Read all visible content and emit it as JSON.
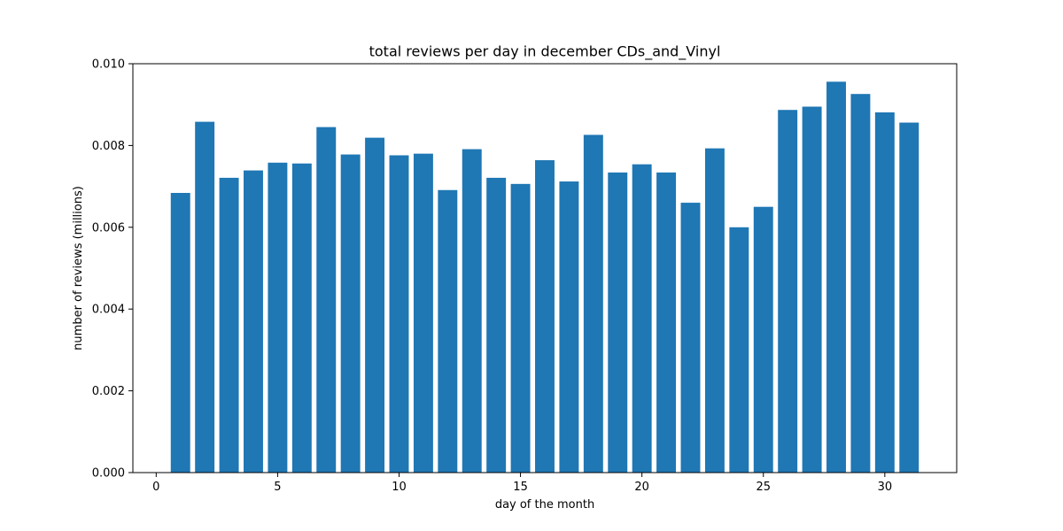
{
  "chart_data": {
    "type": "bar",
    "title": "total reviews per day in december CDs_and_Vinyl",
    "xlabel": "day of the month",
    "ylabel": "number of reviews (millions)",
    "x": [
      1,
      2,
      3,
      4,
      5,
      6,
      7,
      8,
      9,
      10,
      11,
      12,
      13,
      14,
      15,
      16,
      17,
      18,
      19,
      20,
      21,
      22,
      23,
      24,
      25,
      26,
      27,
      28,
      29,
      30,
      31
    ],
    "values": [
      0.00684,
      0.00858,
      0.00721,
      0.00739,
      0.00758,
      0.00756,
      0.00845,
      0.00778,
      0.00819,
      0.00776,
      0.0078,
      0.00691,
      0.00791,
      0.00721,
      0.00706,
      0.00764,
      0.00712,
      0.00826,
      0.00734,
      0.00754,
      0.00734,
      0.0066,
      0.00793,
      0.006,
      0.0065,
      0.00887,
      0.00895,
      0.00956,
      0.00926,
      0.00881,
      0.00856
    ],
    "xlim": [
      -0.96,
      32.96
    ],
    "ylim": [
      0,
      0.01
    ],
    "xticks": [
      0,
      5,
      10,
      15,
      20,
      25,
      30
    ],
    "xtick_labels": [
      "0",
      "5",
      "10",
      "15",
      "20",
      "25",
      "30"
    ],
    "yticks": [
      0,
      0.002,
      0.004,
      0.006,
      0.008,
      0.01
    ],
    "ytick_labels": [
      "0.000",
      "0.002",
      "0.004",
      "0.006",
      "0.008",
      "0.010"
    ],
    "bar_color": "#1f77b4",
    "grid": false,
    "legend": "none"
  }
}
